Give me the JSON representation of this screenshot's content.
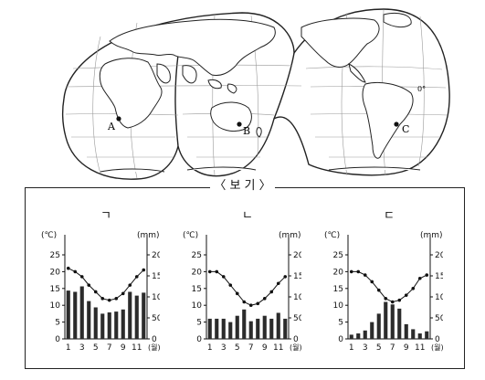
{
  "map": {
    "labels": {
      "a": "A",
      "b": "B",
      "c": "C"
    },
    "equator_label": "0°"
  },
  "bogi": {
    "title": "〈 보 기 〉"
  },
  "charts_common": {
    "temp_unit": "(℃)",
    "precip_unit": "(mm)",
    "month_suffix": "(월)",
    "x_ticks": [
      "1",
      "3",
      "5",
      "7",
      "9",
      "11"
    ],
    "temp_ticks": [
      "25",
      "20",
      "15",
      "10",
      "5",
      "0"
    ],
    "precip_ticks": [
      "200",
      "150",
      "100",
      "50",
      "0"
    ]
  },
  "chart_data": [
    {
      "type": "bar",
      "title": "ㄱ",
      "categories": [
        "1",
        "2",
        "3",
        "4",
        "5",
        "6",
        "7",
        "8",
        "9",
        "10",
        "11",
        "12"
      ],
      "xlabel": "(월)",
      "ylabel": "(℃)",
      "y2label": "(mm)",
      "ylim": [
        0,
        25
      ],
      "y2lim": [
        0,
        200
      ],
      "series": [
        {
          "kind": "bar",
          "values": [
            115,
            112,
            125,
            90,
            75,
            60,
            63,
            65,
            70,
            112,
            103,
            110
          ]
        },
        {
          "kind": "line",
          "values": [
            21,
            20,
            18.5,
            16,
            14,
            12,
            11.5,
            12,
            13.5,
            16,
            18.5,
            20.5
          ]
        }
      ]
    },
    {
      "type": "bar",
      "title": "ㄴ",
      "categories": [
        "1",
        "2",
        "3",
        "4",
        "5",
        "6",
        "7",
        "8",
        "9",
        "10",
        "11",
        "12"
      ],
      "xlabel": "(월)",
      "ylabel": "(℃)",
      "y2label": "(mm)",
      "ylim": [
        0,
        25
      ],
      "y2lim": [
        0,
        200
      ],
      "series": [
        {
          "kind": "bar",
          "values": [
            48,
            48,
            48,
            40,
            55,
            70,
            42,
            48,
            55,
            48,
            62,
            48
          ]
        },
        {
          "kind": "line",
          "values": [
            20,
            20,
            18.5,
            16,
            13.5,
            11,
            10,
            10.5,
            12,
            14,
            16.5,
            18.5
          ]
        }
      ]
    },
    {
      "type": "bar",
      "title": "ㄷ",
      "categories": [
        "1",
        "2",
        "3",
        "4",
        "5",
        "6",
        "7",
        "8",
        "9",
        "10",
        "11",
        "12"
      ],
      "xlabel": "(월)",
      "ylabel": "(℃)",
      "y2label": "(mm)",
      "ylim": [
        0,
        25
      ],
      "y2lim": [
        0,
        200
      ],
      "series": [
        {
          "kind": "bar",
          "values": [
            10,
            13,
            20,
            40,
            60,
            88,
            82,
            72,
            35,
            23,
            13,
            18
          ]
        },
        {
          "kind": "line",
          "values": [
            20,
            20,
            19,
            17,
            14.5,
            12,
            11,
            11.5,
            13,
            15,
            18,
            19
          ]
        }
      ]
    }
  ]
}
